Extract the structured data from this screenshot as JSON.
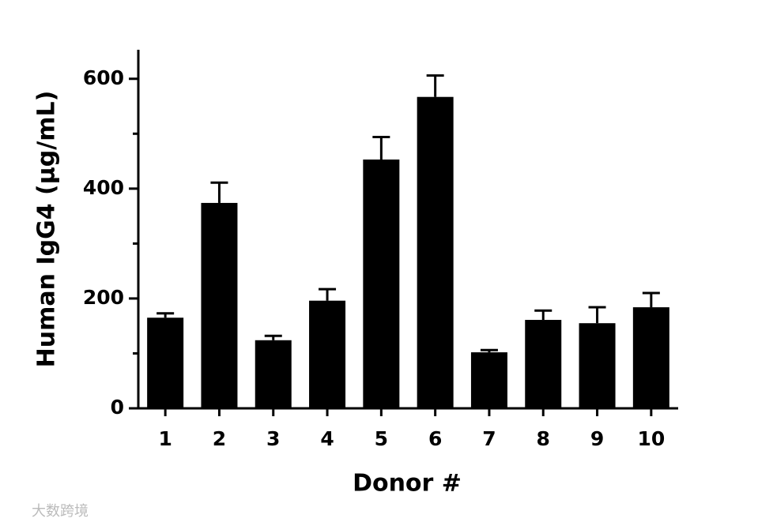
{
  "chart_data": {
    "type": "bar",
    "x_label": "Donor #",
    "y_label": "Human IgG4 (µg/mL)",
    "categories": [
      "1",
      "2",
      "3",
      "4",
      "5",
      "6",
      "7",
      "8",
      "9",
      "10"
    ],
    "values": [
      165,
      374,
      124,
      196,
      453,
      567,
      102,
      161,
      155,
      184
    ],
    "errors": [
      8,
      37,
      8,
      21,
      41,
      39,
      4,
      17,
      29,
      26
    ],
    "color": "#000000",
    "ylim": [
      0,
      650
    ],
    "yticks": [
      0,
      200,
      400,
      600
    ],
    "minor_yticks": [
      100,
      300,
      500
    ],
    "grid": false
  },
  "watermark": "大数跨境"
}
